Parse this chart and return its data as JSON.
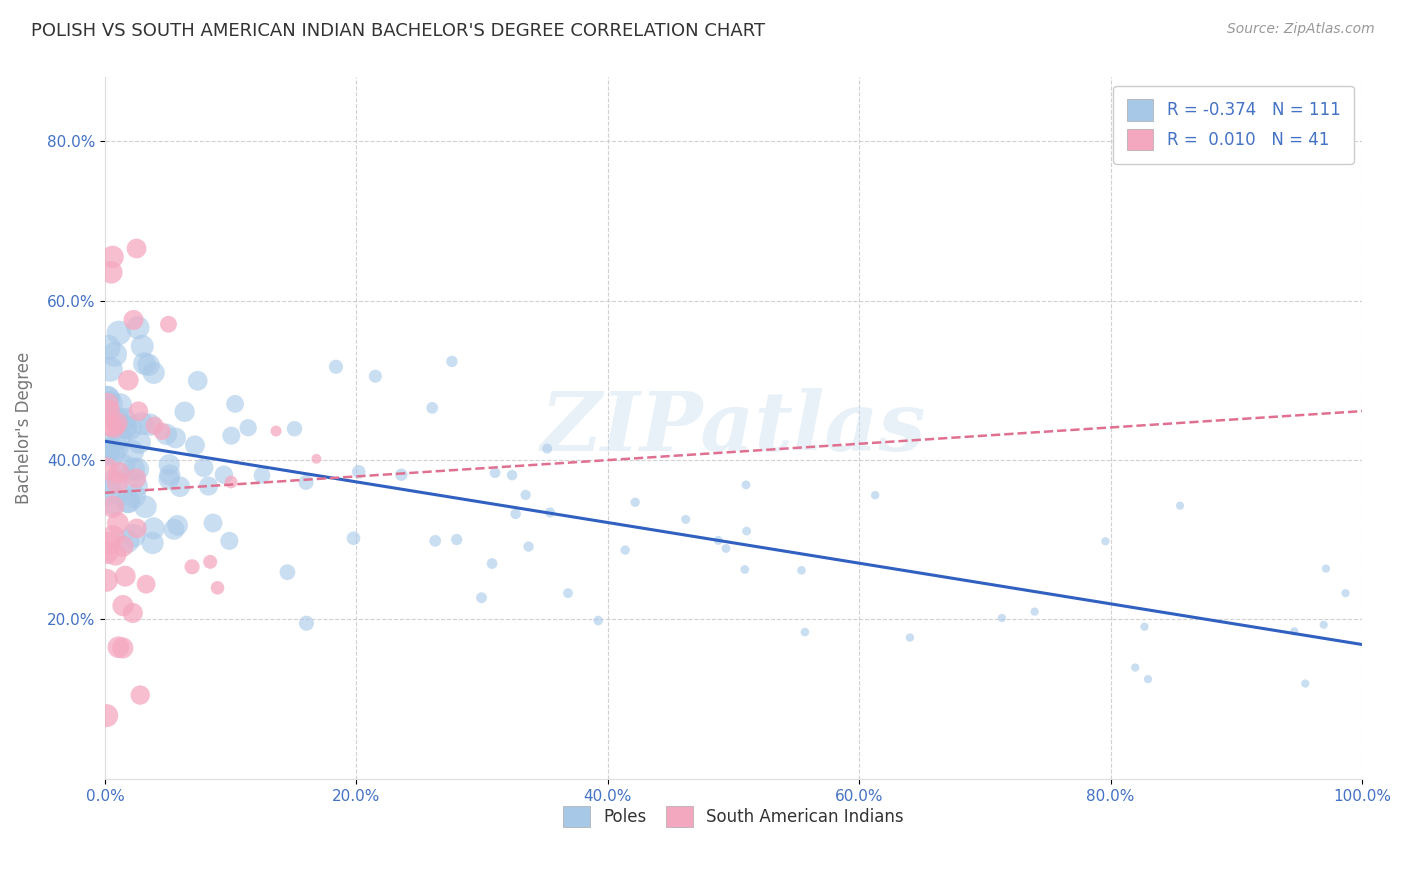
{
  "title": "POLISH VS SOUTH AMERICAN INDIAN BACHELOR'S DEGREE CORRELATION CHART",
  "source": "Source: ZipAtlas.com",
  "ylabel": "Bachelor's Degree",
  "xlim": [
    0.0,
    1.0
  ],
  "ylim": [
    0.0,
    0.88
  ],
  "yticks": [
    0.2,
    0.4,
    0.6,
    0.8
  ],
  "ytick_labels": [
    "20.0%",
    "40.0%",
    "60.0%",
    "80.0%"
  ],
  "xticks": [
    0.0,
    0.2,
    0.4,
    0.6,
    0.8,
    1.0
  ],
  "xtick_labels": [
    "0.0%",
    "20.0%",
    "40.0%",
    "60.0%",
    "80.0%",
    "100.0%"
  ],
  "blue_color": "#a8c8e8",
  "pink_color": "#f4a8c0",
  "blue_line_color": "#3060c0",
  "pink_line_color": "#e07090",
  "R_blue": -0.374,
  "N_blue": 111,
  "R_pink": 0.01,
  "N_pink": 41,
  "watermark": "ZIPatlas",
  "background_color": "#ffffff",
  "grid_color": "#cccccc",
  "title_color": "#333333",
  "legend_text_color": "#4472c4",
  "axis_label_color": "#777777",
  "tick_label_color": "#4472c4"
}
